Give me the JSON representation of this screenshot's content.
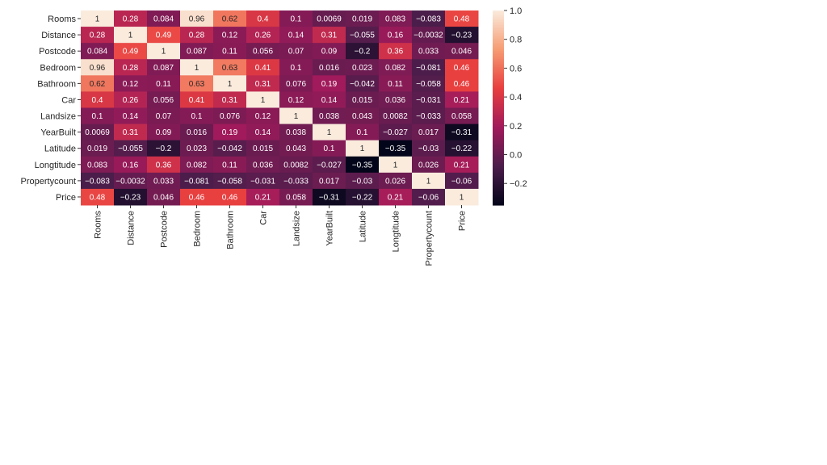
{
  "chart_data": {
    "type": "heatmap",
    "title": "",
    "labels": [
      "Rooms",
      "Distance",
      "Postcode",
      "Bedroom",
      "Bathroom",
      "Car",
      "Landsize",
      "YearBuilt",
      "Latitude",
      "Longtitude",
      "Propertycount",
      "Price"
    ],
    "matrix": [
      [
        1,
        0.28,
        0.084,
        0.96,
        0.62,
        0.4,
        0.1,
        0.0069,
        0.019,
        0.083,
        -0.083,
        0.48
      ],
      [
        0.28,
        1,
        0.49,
        0.28,
        0.12,
        0.26,
        0.14,
        0.31,
        -0.055,
        0.16,
        -0.0032,
        -0.23
      ],
      [
        0.084,
        0.49,
        1,
        0.087,
        0.11,
        0.056,
        0.07,
        0.09,
        -0.2,
        0.36,
        0.033,
        0.046
      ],
      [
        0.96,
        0.28,
        0.087,
        1,
        0.63,
        0.41,
        0.1,
        0.016,
        0.023,
        0.082,
        -0.081,
        0.46
      ],
      [
        0.62,
        0.12,
        0.11,
        0.63,
        1,
        0.31,
        0.076,
        0.19,
        -0.042,
        0.11,
        -0.058,
        0.46
      ],
      [
        0.4,
        0.26,
        0.056,
        0.41,
        0.31,
        1,
        0.12,
        0.14,
        0.015,
        0.036,
        -0.031,
        0.21
      ],
      [
        0.1,
        0.14,
        0.07,
        0.1,
        0.076,
        0.12,
        1,
        0.038,
        0.043,
        0.0082,
        -0.033,
        0.058
      ],
      [
        0.0069,
        0.31,
        0.09,
        0.016,
        0.19,
        0.14,
        0.038,
        1,
        0.1,
        -0.027,
        0.017,
        -0.31
      ],
      [
        0.019,
        -0.055,
        -0.2,
        0.023,
        -0.042,
        0.015,
        0.043,
        0.1,
        1,
        -0.35,
        -0.03,
        -0.22
      ],
      [
        0.083,
        0.16,
        0.36,
        0.082,
        0.11,
        0.036,
        0.0082,
        -0.027,
        -0.35,
        1,
        0.026,
        0.21
      ],
      [
        -0.083,
        -0.0032,
        0.033,
        -0.081,
        -0.058,
        -0.031,
        -0.033,
        0.017,
        -0.03,
        0.026,
        1,
        -0.06
      ],
      [
        0.48,
        -0.23,
        0.046,
        0.46,
        0.46,
        0.21,
        0.058,
        -0.31,
        -0.22,
        0.21,
        -0.06,
        1
      ]
    ],
    "colorbar": {
      "vmin": -0.35,
      "vmax": 1.0,
      "ticks": [
        "1.0",
        "0.8",
        "0.6",
        "0.4",
        "0.2",
        "0.0",
        "−0.2"
      ],
      "tick_values": [
        1.0,
        0.8,
        0.6,
        0.4,
        0.2,
        0.0,
        -0.2
      ]
    },
    "colormap": [
      "#03051a",
      "#4c1d4b",
      "#a11a5b",
      "#e83f3f",
      "#f69c73",
      "#faebdd"
    ],
    "annotated": true
  }
}
